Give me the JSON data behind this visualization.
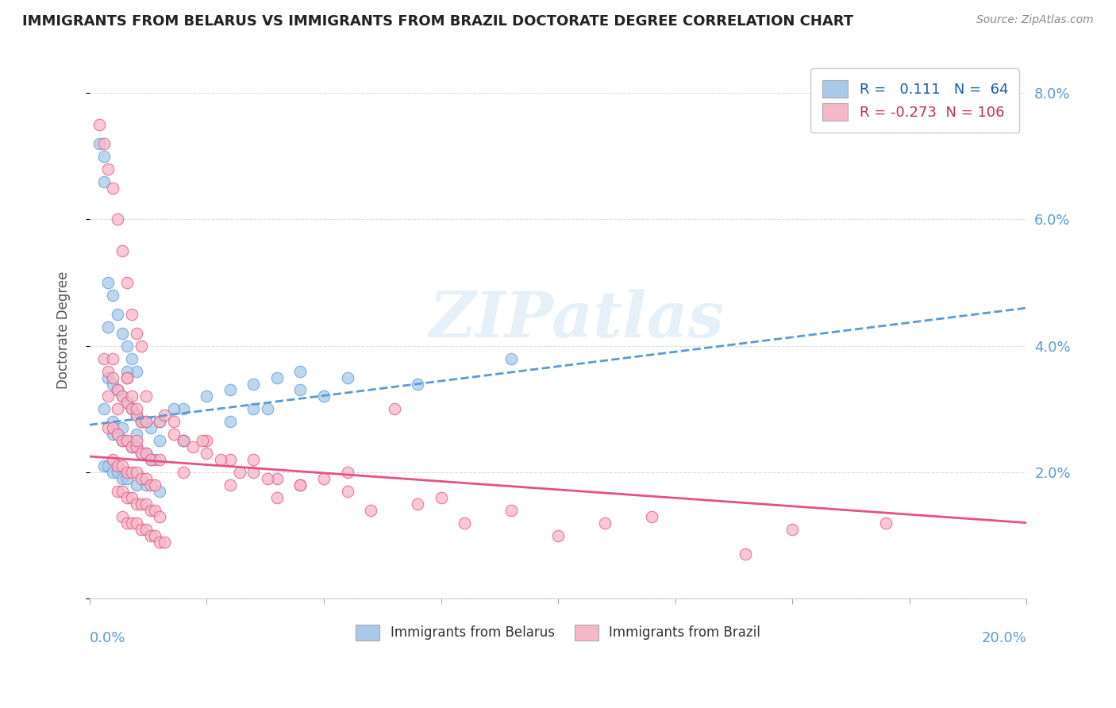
{
  "title": "IMMIGRANTS FROM BELARUS VS IMMIGRANTS FROM BRAZIL DOCTORATE DEGREE CORRELATION CHART",
  "source": "Source: ZipAtlas.com",
  "ylabel": "Doctorate Degree",
  "r_belarus": 0.111,
  "n_belarus": 64,
  "r_brazil": -0.273,
  "n_brazil": 106,
  "color_belarus": "#aac9e8",
  "color_brazil": "#f5b8c8",
  "line_color_belarus": "#5b9bd5",
  "line_color_brazil": "#e85080",
  "background_color": "#ffffff",
  "watermark_text": "ZIPatlas",
  "xlim": [
    0.0,
    20.0
  ],
  "ylim": [
    0.0,
    8.5
  ],
  "yticks": [
    0.0,
    2.0,
    4.0,
    6.0,
    8.0
  ],
  "ytick_labels": [
    "",
    "2.0%",
    "4.0%",
    "6.0%",
    "8.0%"
  ],
  "bel_line_x0": 0.0,
  "bel_line_x1": 20.0,
  "bel_line_y0": 2.75,
  "bel_line_y1": 4.6,
  "bra_line_x0": 0.0,
  "bra_line_x1": 20.0,
  "bra_line_y0": 2.25,
  "bra_line_y1": 1.2,
  "belarus_x": [
    0.2,
    0.3,
    0.3,
    0.4,
    0.5,
    0.6,
    0.7,
    0.8,
    0.9,
    1.0,
    0.4,
    0.5,
    0.6,
    0.7,
    0.8,
    0.9,
    1.0,
    1.1,
    1.2,
    1.3,
    0.5,
    0.6,
    0.7,
    0.8,
    0.9,
    1.0,
    1.1,
    1.2,
    1.3,
    1.4,
    0.3,
    0.4,
    0.5,
    0.6,
    0.7,
    0.8,
    1.0,
    1.2,
    1.5,
    2.0,
    1.5,
    2.0,
    2.5,
    3.0,
    3.5,
    4.0,
    4.5,
    5.5,
    7.0,
    9.0,
    0.3,
    0.5,
    0.7,
    1.0,
    1.5,
    2.0,
    3.0,
    4.5,
    3.5,
    5.0,
    0.4,
    0.8,
    1.8,
    3.8
  ],
  "belarus_y": [
    7.2,
    7.0,
    6.6,
    5.0,
    4.8,
    4.5,
    4.2,
    4.0,
    3.8,
    3.6,
    3.5,
    3.4,
    3.3,
    3.2,
    3.1,
    3.0,
    2.9,
    2.8,
    2.8,
    2.7,
    2.6,
    2.6,
    2.5,
    2.5,
    2.4,
    2.4,
    2.3,
    2.3,
    2.2,
    2.2,
    2.1,
    2.1,
    2.0,
    2.0,
    1.9,
    1.9,
    1.8,
    1.8,
    1.7,
    2.5,
    2.8,
    3.0,
    3.2,
    3.3,
    3.4,
    3.5,
    3.6,
    3.5,
    3.4,
    3.8,
    3.0,
    2.8,
    2.7,
    2.6,
    2.5,
    2.5,
    2.8,
    3.3,
    3.0,
    3.2,
    4.3,
    3.6,
    3.0,
    3.0
  ],
  "brazil_x": [
    0.2,
    0.3,
    0.4,
    0.5,
    0.6,
    0.7,
    0.8,
    0.9,
    1.0,
    1.1,
    0.3,
    0.4,
    0.5,
    0.6,
    0.7,
    0.8,
    0.9,
    1.0,
    1.1,
    1.2,
    0.4,
    0.5,
    0.6,
    0.7,
    0.8,
    0.9,
    1.0,
    1.1,
    1.2,
    1.3,
    0.5,
    0.6,
    0.7,
    0.8,
    0.9,
    1.0,
    1.1,
    1.2,
    1.3,
    1.4,
    0.6,
    0.7,
    0.8,
    0.9,
    1.0,
    1.1,
    1.2,
    1.3,
    1.4,
    1.5,
    0.7,
    0.8,
    0.9,
    1.0,
    1.1,
    1.2,
    1.3,
    1.4,
    1.5,
    1.6,
    0.8,
    0.9,
    1.0,
    1.5,
    2.0,
    2.5,
    3.0,
    3.5,
    4.0,
    4.5,
    1.8,
    2.2,
    2.8,
    3.2,
    3.8,
    4.5,
    5.5,
    7.0,
    9.0,
    11.0,
    0.5,
    0.8,
    1.2,
    1.8,
    2.5,
    3.5,
    5.0,
    7.5,
    12.0,
    15.0,
    1.0,
    1.5,
    2.0,
    3.0,
    4.0,
    6.0,
    8.0,
    10.0,
    14.0,
    17.0,
    0.4,
    0.6,
    1.6,
    2.4,
    5.5,
    6.5
  ],
  "brazil_y": [
    7.5,
    7.2,
    6.8,
    6.5,
    6.0,
    5.5,
    5.0,
    4.5,
    4.2,
    4.0,
    3.8,
    3.6,
    3.5,
    3.3,
    3.2,
    3.1,
    3.0,
    2.9,
    2.8,
    2.8,
    2.7,
    2.7,
    2.6,
    2.5,
    2.5,
    2.4,
    2.4,
    2.3,
    2.3,
    2.2,
    2.2,
    2.1,
    2.1,
    2.0,
    2.0,
    2.0,
    1.9,
    1.9,
    1.8,
    1.8,
    1.7,
    1.7,
    1.6,
    1.6,
    1.5,
    1.5,
    1.5,
    1.4,
    1.4,
    1.3,
    1.3,
    1.2,
    1.2,
    1.2,
    1.1,
    1.1,
    1.0,
    1.0,
    0.9,
    0.9,
    3.5,
    3.2,
    3.0,
    2.8,
    2.5,
    2.3,
    2.2,
    2.0,
    1.9,
    1.8,
    2.6,
    2.4,
    2.2,
    2.0,
    1.9,
    1.8,
    1.7,
    1.5,
    1.4,
    1.2,
    3.8,
    3.5,
    3.2,
    2.8,
    2.5,
    2.2,
    1.9,
    1.6,
    1.3,
    1.1,
    2.5,
    2.2,
    2.0,
    1.8,
    1.6,
    1.4,
    1.2,
    1.0,
    0.7,
    1.2,
    3.2,
    3.0,
    2.9,
    2.5,
    2.0,
    3.0
  ]
}
